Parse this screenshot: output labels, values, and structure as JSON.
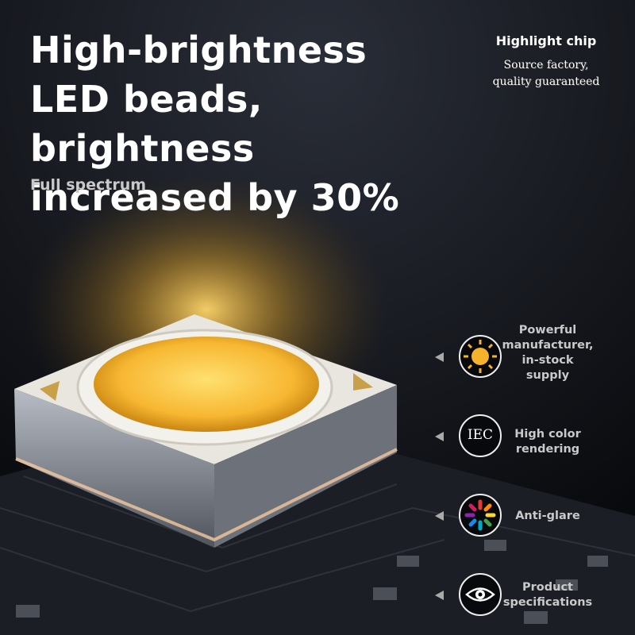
{
  "header": {
    "title": "High-brightness LED beads, brightness increased by 30%",
    "subtitle": "Full spectrum"
  },
  "badge": {
    "title": "Highlight chip",
    "text": "Source factory, quality guaranteed"
  },
  "features": [
    {
      "label": "Powerful manufacturer, in-stock supply"
    },
    {
      "label": "High color rendering",
      "icon_text": "IEC"
    },
    {
      "label": "Anti-glare"
    },
    {
      "label": "Product specifications"
    }
  ]
}
